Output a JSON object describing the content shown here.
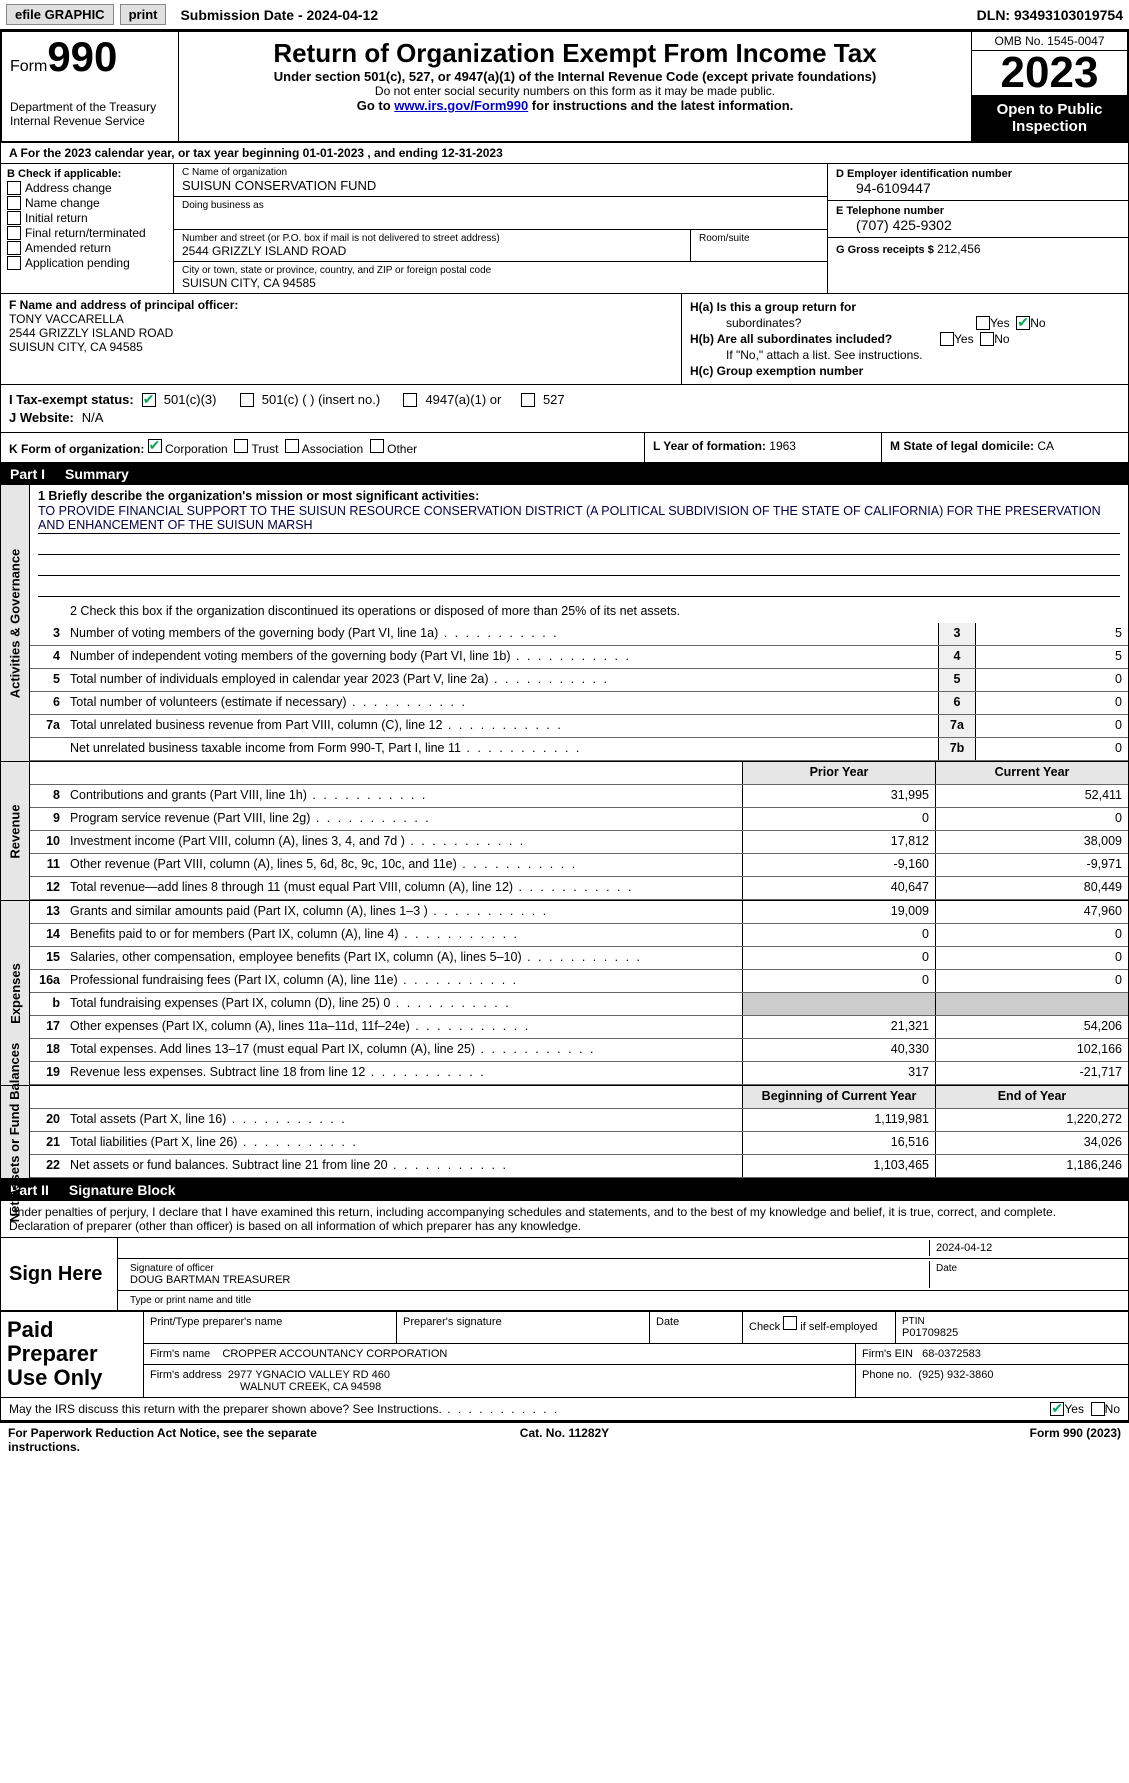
{
  "topbar": {
    "efile": "efile GRAPHIC",
    "print": "print",
    "submission": "Submission Date - 2024-04-12",
    "dln": "DLN: 93493103019754"
  },
  "header": {
    "form_prefix": "Form",
    "form_number": "990",
    "dept": "Department of the Treasury",
    "irs": "Internal Revenue Service",
    "title": "Return of Organization Exempt From Income Tax",
    "sub1": "Under section 501(c), 527, or 4947(a)(1) of the Internal Revenue Code (except private foundations)",
    "sub2": "Do not enter social security numbers on this form as it may be made public.",
    "sub3_pre": "Go to ",
    "sub3_link": "www.irs.gov/Form990",
    "sub3_post": " for instructions and the latest information.",
    "omb": "OMB No. 1545-0047",
    "year": "2023",
    "open1": "Open to Public",
    "open2": "Inspection"
  },
  "rowA": "A  For the 2023 calendar year, or tax year beginning 01-01-2023    , and ending 12-31-2023",
  "boxB": {
    "title": "B Check if applicable:",
    "items": [
      "Address change",
      "Name change",
      "Initial return",
      "Final return/terminated",
      "Amended return",
      "Application pending"
    ]
  },
  "boxC": {
    "name_label": "C Name of organization",
    "name": "SUISUN CONSERVATION FUND",
    "dba_label": "Doing business as",
    "addr_label": "Number and street (or P.O. box if mail is not delivered to street address)",
    "room_label": "Room/suite",
    "addr": "2544 GRIZZLY ISLAND ROAD",
    "city_label": "City or town, state or province, country, and ZIP or foreign postal code",
    "city": "SUISUN CITY, CA  94585"
  },
  "boxD": {
    "label": "D Employer identification number",
    "val": "94-6109447"
  },
  "boxE": {
    "label": "E Telephone number",
    "val": "(707) 425-9302"
  },
  "boxG": {
    "label": "G Gross receipts $",
    "val": "212,456"
  },
  "boxF": {
    "label": "F  Name and address of principal officer:",
    "name": "TONY VACCARELLA",
    "addr1": "2544 GRIZZLY ISLAND ROAD",
    "addr2": "SUISUN CITY, CA  94585"
  },
  "boxH": {
    "a_label": "H(a)  Is this a group return for",
    "a_label2": "subordinates?",
    "b_label": "H(b)  Are all subordinates included?",
    "b_note": "If \"No,\" attach a list. See instructions.",
    "c_label": "H(c)  Group exemption number",
    "yes": "Yes",
    "no": "No"
  },
  "boxI": {
    "label": "I    Tax-exempt status:",
    "c3": "501(c)(3)",
    "c": "501(c) (  ) (insert no.)",
    "a1": "4947(a)(1) or",
    "c527": "527"
  },
  "boxJ": {
    "label": "J   Website:",
    "val": "N/A"
  },
  "boxK": {
    "label": "K Form of organization:",
    "opts": [
      "Corporation",
      "Trust",
      "Association",
      "Other"
    ]
  },
  "boxL": {
    "label": "L Year of formation:",
    "val": "1963"
  },
  "boxM": {
    "label": "M State of legal domicile:",
    "val": "CA"
  },
  "part1": {
    "pn": "Part I",
    "title": "Summary"
  },
  "gov": {
    "vlabel": "Activities & Governance",
    "q1_label": "1   Briefly describe the organization's mission or most significant activities:",
    "q1_text": "TO PROVIDE FINANCIAL SUPPORT TO THE SUISUN RESOURCE CONSERVATION DISTRICT (A POLITICAL SUBDIVISION OF THE STATE OF CALIFORNIA) FOR THE PRESERVATION AND ENHANCEMENT OF THE SUISUN MARSH",
    "q2": "2   Check this box      if the organization discontinued its operations or disposed of more than 25% of its net assets.",
    "lines": [
      {
        "n": "3",
        "d": "Number of voting members of the governing body (Part VI, line 1a)",
        "b": "3",
        "v": "5"
      },
      {
        "n": "4",
        "d": "Number of independent voting members of the governing body (Part VI, line 1b)",
        "b": "4",
        "v": "5"
      },
      {
        "n": "5",
        "d": "Total number of individuals employed in calendar year 2023 (Part V, line 2a)",
        "b": "5",
        "v": "0"
      },
      {
        "n": "6",
        "d": "Total number of volunteers (estimate if necessary)",
        "b": "6",
        "v": "0"
      },
      {
        "n": "7a",
        "d": "Total unrelated business revenue from Part VIII, column (C), line 12",
        "b": "7a",
        "v": "0"
      },
      {
        "n": "",
        "d": "Net unrelated business taxable income from Form 990-T, Part I, line 11",
        "b": "7b",
        "v": "0"
      }
    ]
  },
  "rev": {
    "vlabel": "Revenue",
    "hdr_prior": "Prior Year",
    "hdr_curr": "Current Year",
    "lines": [
      {
        "n": "8",
        "d": "Contributions and grants (Part VIII, line 1h)",
        "p": "31,995",
        "c": "52,411"
      },
      {
        "n": "9",
        "d": "Program service revenue (Part VIII, line 2g)",
        "p": "0",
        "c": "0"
      },
      {
        "n": "10",
        "d": "Investment income (Part VIII, column (A), lines 3, 4, and 7d )",
        "p": "17,812",
        "c": "38,009"
      },
      {
        "n": "11",
        "d": "Other revenue (Part VIII, column (A), lines 5, 6d, 8c, 9c, 10c, and 11e)",
        "p": "-9,160",
        "c": "-9,971"
      },
      {
        "n": "12",
        "d": "Total revenue—add lines 8 through 11 (must equal Part VIII, column (A), line 12)",
        "p": "40,647",
        "c": "80,449"
      }
    ]
  },
  "exp": {
    "vlabel": "Expenses",
    "lines": [
      {
        "n": "13",
        "d": "Grants and similar amounts paid (Part IX, column (A), lines 1–3 )",
        "p": "19,009",
        "c": "47,960"
      },
      {
        "n": "14",
        "d": "Benefits paid to or for members (Part IX, column (A), line 4)",
        "p": "0",
        "c": "0"
      },
      {
        "n": "15",
        "d": "Salaries, other compensation, employee benefits (Part IX, column (A), lines 5–10)",
        "p": "0",
        "c": "0"
      },
      {
        "n": "16a",
        "d": "Professional fundraising fees (Part IX, column (A), line 11e)",
        "p": "0",
        "c": "0"
      },
      {
        "n": "b",
        "d": "Total fundraising expenses (Part IX, column (D), line 25) 0",
        "p": "",
        "c": "",
        "shaded": true
      },
      {
        "n": "17",
        "d": "Other expenses (Part IX, column (A), lines 11a–11d, 11f–24e)",
        "p": "21,321",
        "c": "54,206"
      },
      {
        "n": "18",
        "d": "Total expenses. Add lines 13–17 (must equal Part IX, column (A), line 25)",
        "p": "40,330",
        "c": "102,166"
      },
      {
        "n": "19",
        "d": "Revenue less expenses. Subtract line 18 from line 12",
        "p": "317",
        "c": "-21,717"
      }
    ]
  },
  "net": {
    "vlabel": "Net Assets or Fund Balances",
    "hdr_prior": "Beginning of Current Year",
    "hdr_curr": "End of Year",
    "lines": [
      {
        "n": "20",
        "d": "Total assets (Part X, line 16)",
        "p": "1,119,981",
        "c": "1,220,272"
      },
      {
        "n": "21",
        "d": "Total liabilities (Part X, line 26)",
        "p": "16,516",
        "c": "34,026"
      },
      {
        "n": "22",
        "d": "Net assets or fund balances. Subtract line 21 from line 20",
        "p": "1,103,465",
        "c": "1,186,246"
      }
    ]
  },
  "part2": {
    "pn": "Part II",
    "title": "Signature Block"
  },
  "sig": {
    "decl": "Under penalties of perjury, I declare that I have examined this return, including accompanying schedules and statements, and to the best of my knowledge and belief, it is true, correct, and complete. Declaration of preparer (other than officer) is based on all information of which preparer has any knowledge.",
    "sign_here": "Sign Here",
    "sig_label": "Signature of officer",
    "date_label": "Date",
    "date": "2024-04-12",
    "name": "DOUG BARTMAN  TREASURER",
    "name_label": "Type or print name and title"
  },
  "paid": {
    "label": "Paid Preparer Use Only",
    "prep_name_label": "Print/Type preparer's name",
    "prep_sig_label": "Preparer's signature",
    "date_label": "Date",
    "self_label": "Check       if self-employed",
    "ptin_label": "PTIN",
    "ptin": "P01709825",
    "firm_name_label": "Firm's name",
    "firm_name": "CROPPER ACCOUNTANCY CORPORATION",
    "firm_ein_label": "Firm's EIN",
    "firm_ein": "68-0372583",
    "firm_addr_label": "Firm's address",
    "firm_addr": "2977 YGNACIO VALLEY RD 460",
    "firm_addr2": "WALNUT CREEK, CA  94598",
    "phone_label": "Phone no.",
    "phone": "(925) 932-3860"
  },
  "discuss": {
    "q": "May the IRS discuss this return with the preparer shown above? See Instructions.",
    "yes": "Yes",
    "no": "No"
  },
  "footer": {
    "l": "For Paperwork Reduction Act Notice, see the separate instructions.",
    "c": "Cat. No. 11282Y",
    "r": "Form 990 (2023)"
  }
}
